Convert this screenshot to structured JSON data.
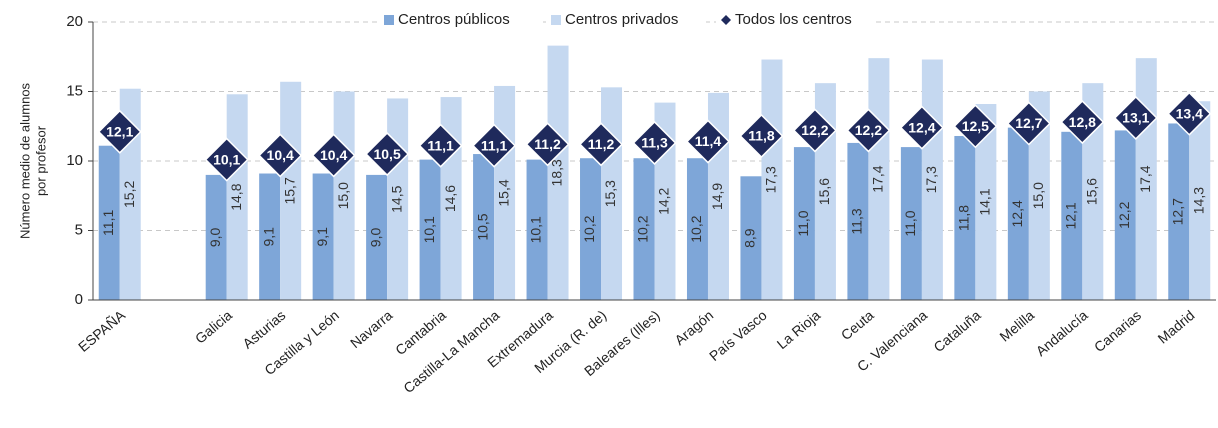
{
  "chart_data": {
    "type": "bar",
    "y_label": [
      "Número medio de alumnos",
      "por profesor"
    ],
    "categories": [
      "ESPAÑA",
      null,
      "Galicia",
      "Asturias",
      "Castilla y León",
      "Navarra",
      "Cantabria",
      "Castilla-La Mancha",
      "Extremadura",
      "Murcia (R. de)",
      "Baleares (Illes)",
      "Aragón",
      "País Vasco",
      "La Rioja",
      "Ceuta",
      "C. Valenciana",
      "Cataluña",
      "Melilla",
      "Andalucía",
      "Canarias",
      "Madrid"
    ],
    "series": [
      {
        "name": "Centros públicos",
        "color": "#7ea6d8",
        "kind": "bar",
        "values": [
          11.1,
          null,
          9.0,
          9.1,
          9.1,
          9.0,
          10.1,
          10.5,
          10.1,
          10.2,
          10.2,
          10.2,
          8.9,
          11.0,
          11.3,
          11.0,
          11.8,
          12.4,
          12.1,
          12.2,
          12.7
        ],
        "value_labels": [
          "11,1",
          null,
          "9,0",
          "9,1",
          "9,1",
          "9,0",
          "10,1",
          "10,5",
          "10,1",
          "10,2",
          "10,2",
          "10,2",
          "8,9",
          "11,0",
          "11,3",
          "11,0",
          "11,8",
          "12,4",
          "12,1",
          "12,2",
          "12,7"
        ]
      },
      {
        "name": "Centros privados",
        "color": "#c5d8f0",
        "kind": "bar",
        "values": [
          15.2,
          null,
          14.8,
          15.7,
          15.0,
          14.5,
          14.6,
          15.4,
          18.3,
          15.3,
          14.2,
          14.9,
          17.3,
          15.6,
          17.4,
          17.3,
          14.1,
          15.0,
          15.6,
          17.4,
          14.3
        ],
        "value_labels": [
          "15,2",
          null,
          "14,8",
          "15,7",
          "15,0",
          "14,5",
          "14,6",
          "15,4",
          "18,3",
          "15,3",
          "14,2",
          "14,9",
          "17,3",
          "15,6",
          "17,4",
          "17,3",
          "14,1",
          "15,0",
          "15,6",
          "17,4",
          "14,3"
        ]
      },
      {
        "name": "Todos los centros",
        "color": "#1f2a5c",
        "kind": "diamond",
        "values": [
          12.1,
          null,
          10.1,
          10.4,
          10.4,
          10.5,
          11.1,
          11.1,
          11.2,
          11.2,
          11.3,
          11.4,
          11.8,
          12.2,
          12.2,
          12.4,
          12.5,
          12.7,
          12.8,
          13.1,
          13.4
        ],
        "value_labels": [
          "12,1",
          null,
          "10,1",
          "10,4",
          "10,4",
          "10,5",
          "11,1",
          "11,1",
          "11,2",
          "11,2",
          "11,3",
          "11,4",
          "11,8",
          "12,2",
          "12,2",
          "12,4",
          "12,5",
          "12,7",
          "12,8",
          "13,1",
          "13,4"
        ]
      }
    ],
    "ylim": [
      0,
      20
    ],
    "yticks": [
      0,
      5,
      10,
      15,
      20
    ],
    "grid": true,
    "legend": "top"
  }
}
